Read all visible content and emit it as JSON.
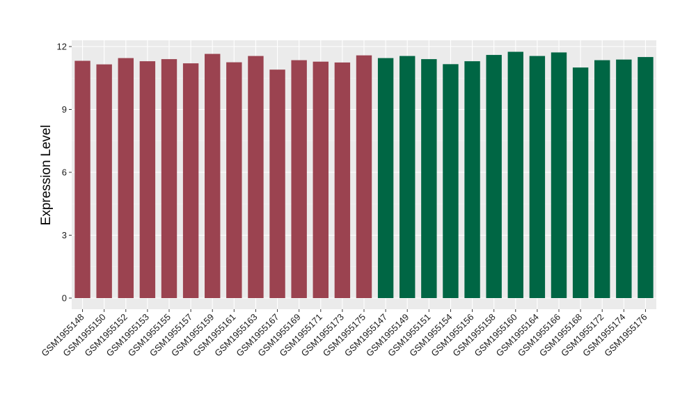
{
  "chart_data": {
    "type": "bar",
    "title": "",
    "xlabel": "",
    "ylabel": "Expression Level",
    "ylim": [
      0,
      12.4
    ],
    "yticks": [
      0,
      3,
      6,
      9,
      12
    ],
    "grid": true,
    "background": "#ebebeb",
    "colors": {
      "group_1": "#9b4350",
      "group_2": "#006644"
    },
    "categories": [
      "GSM1955148",
      "GSM1955150",
      "GSM1955152",
      "GSM1955153",
      "GSM1955155",
      "GSM1955157",
      "GSM1955159",
      "GSM1955161",
      "GSM1955163",
      "GSM1955167",
      "GSM1955169",
      "GSM1955171",
      "GSM1955173",
      "GSM1955175",
      "GSM1955147",
      "GSM1955149",
      "GSM1955151",
      "GSM1955154",
      "GSM1955156",
      "GSM1955158",
      "GSM1955160",
      "GSM1955164",
      "GSM1955166",
      "GSM1955168",
      "GSM1955172",
      "GSM1955174",
      "GSM1955176"
    ],
    "values": [
      11.32,
      11.15,
      11.45,
      11.3,
      11.4,
      11.2,
      11.65,
      11.25,
      11.55,
      10.9,
      11.35,
      11.28,
      11.24,
      11.58,
      11.45,
      11.55,
      11.4,
      11.16,
      11.3,
      11.6,
      11.75,
      11.55,
      11.72,
      11.0,
      11.35,
      11.38,
      11.5
    ],
    "groups": [
      1,
      1,
      1,
      1,
      1,
      1,
      1,
      1,
      1,
      1,
      1,
      1,
      1,
      1,
      2,
      2,
      2,
      2,
      2,
      2,
      2,
      2,
      2,
      2,
      2,
      2,
      2
    ]
  }
}
